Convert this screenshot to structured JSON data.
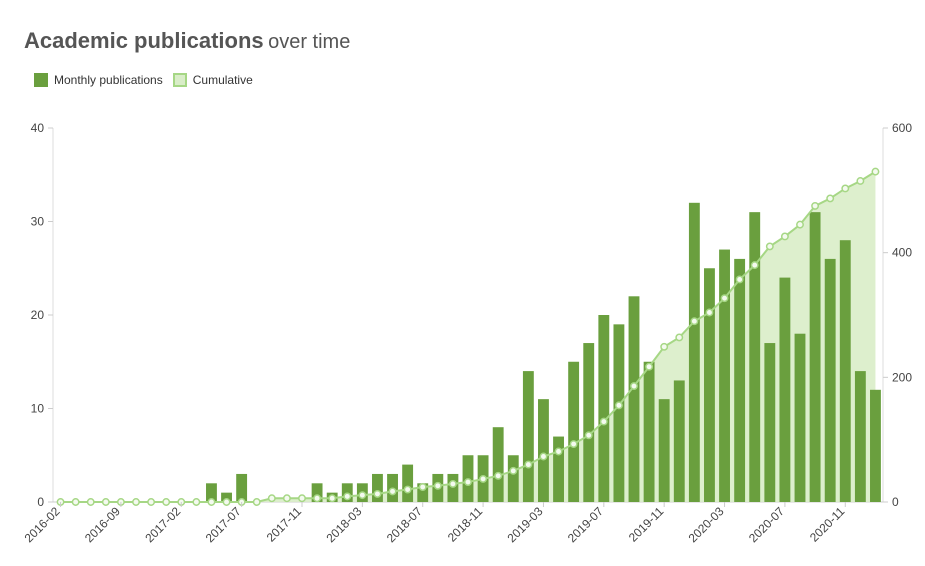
{
  "chart_title": {
    "main": "Academic publications",
    "sub": "over time"
  },
  "legend": {
    "monthly": {
      "label": "Monthly publications",
      "color": "#6a9f3e"
    },
    "cumulative": {
      "label": "Cumulative",
      "color": "#a6d785",
      "fill": "#d9edc8"
    }
  },
  "chart_data": {
    "type": "bar",
    "title": "Academic publications over time",
    "xlabel": "",
    "ylabel": "",
    "x_tick_labels": [
      "2016-02",
      "2016-09",
      "2017-02",
      "2017-07",
      "2017-11",
      "2018-03",
      "2018-07",
      "2018-11",
      "2019-03",
      "2019-07",
      "2019-11",
      "2020-03",
      "2020-07",
      "2020-11"
    ],
    "x_tick_indices": [
      0,
      4,
      8,
      12,
      16,
      20,
      24,
      28,
      32,
      36,
      40,
      44,
      48,
      52
    ],
    "ylim_left": [
      0,
      40
    ],
    "yticks_left": [
      "0",
      "10",
      "20",
      "30",
      "40"
    ],
    "ylim_right": [
      0,
      600
    ],
    "yticks_right": [
      "0",
      "200",
      "400",
      "600"
    ],
    "grid": false,
    "legend_position": "top-left",
    "series": [
      {
        "name": "Monthly publications",
        "type": "bar",
        "axis": "left",
        "values": [
          0,
          0,
          0,
          0,
          0,
          0,
          0,
          0,
          0,
          0,
          2,
          1,
          3,
          0,
          0,
          0,
          0,
          2,
          1,
          2,
          2,
          3,
          3,
          4,
          2,
          3,
          3,
          5,
          5,
          8,
          5,
          14,
          11,
          7,
          15,
          17,
          20,
          19,
          22,
          15,
          11,
          13,
          32,
          25,
          27,
          26,
          31,
          17,
          24,
          18,
          31,
          26,
          28,
          14,
          12
        ]
      },
      {
        "name": "Cumulative",
        "type": "area",
        "axis": "right",
        "values": [
          0,
          0,
          0,
          0,
          0,
          0,
          0,
          0,
          0,
          0,
          0,
          0,
          0,
          0,
          6,
          6,
          6,
          6,
          6,
          9,
          11,
          13,
          17,
          20,
          24,
          26,
          29,
          32,
          37,
          42,
          50,
          60,
          73,
          81,
          93,
          107,
          129,
          155,
          186,
          217,
          249,
          264,
          290,
          304,
          327,
          357,
          380,
          410,
          426,
          445,
          475,
          487,
          503,
          515,
          530
        ]
      }
    ]
  }
}
